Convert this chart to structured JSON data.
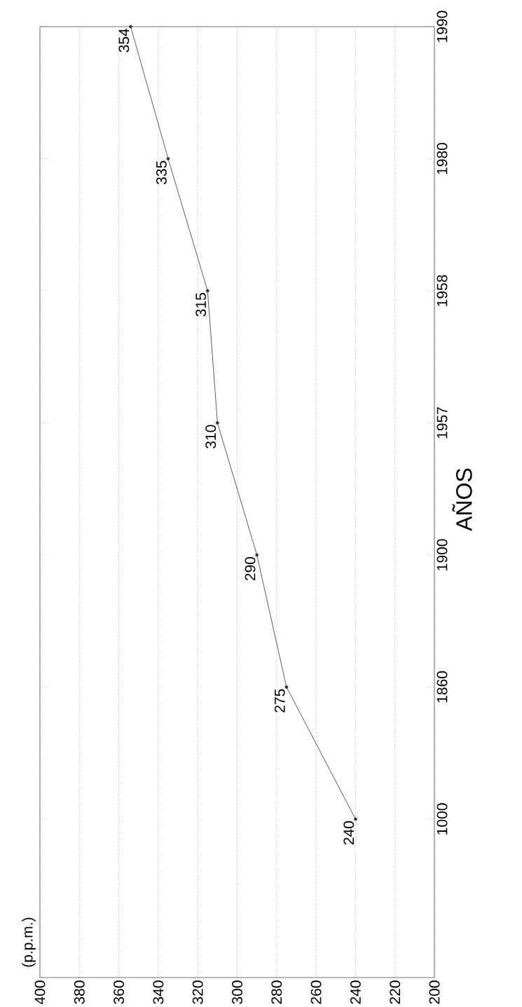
{
  "chart_data": {
    "type": "line",
    "orientation": "horizontal",
    "annotations": [
      "(p.p.m.)"
    ],
    "ylabel": "AÑOS",
    "categories": [
      "1990",
      "1980",
      "1958",
      "1957",
      "1900",
      "1860",
      "1000"
    ],
    "values": [
      354,
      335,
      315,
      310,
      290,
      275,
      240
    ],
    "color": "#333333",
    "xlim": [
      400,
      200
    ],
    "xticks": [
      200,
      220,
      240,
      260,
      280,
      300,
      320,
      340,
      360,
      380,
      400
    ],
    "grid": "x",
    "marker": "circle",
    "line_style": "solid",
    "data_labels": true
  }
}
